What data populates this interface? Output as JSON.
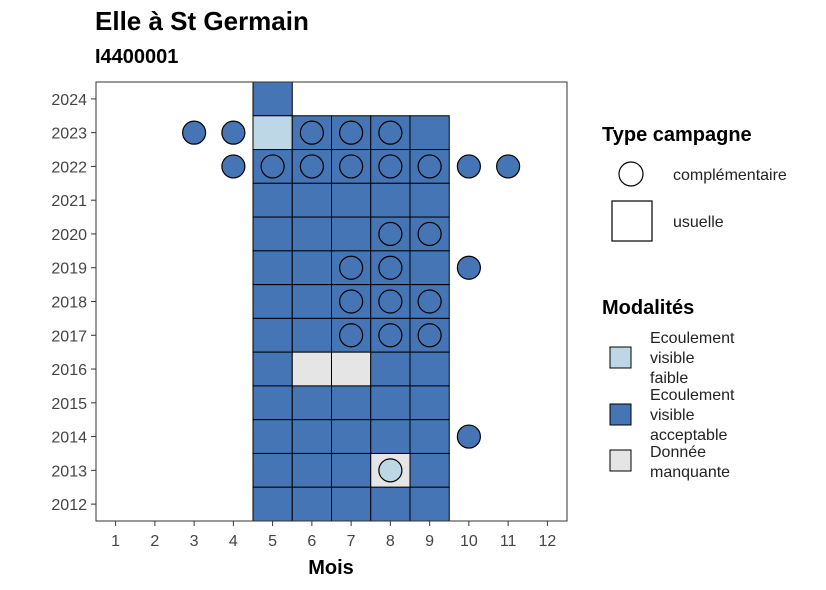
{
  "chart_data": {
    "type": "heatmap",
    "title": "Elle à St Germain",
    "subtitle": "I4400001",
    "xlabel": "Mois",
    "ylabel": "",
    "x_ticks": [
      1,
      2,
      3,
      4,
      5,
      6,
      7,
      8,
      9,
      10,
      11,
      12
    ],
    "y_ticks": [
      2012,
      2013,
      2014,
      2015,
      2016,
      2017,
      2018,
      2019,
      2020,
      2021,
      2022,
      2023,
      2024
    ],
    "xlim": [
      0.5,
      12.5
    ],
    "ylim": [
      2011.5,
      2024.5
    ],
    "grid": false,
    "legend_placement": "right",
    "colors": {
      "faible": "#BDD7E7",
      "acceptable": "#4575B4",
      "manquante": "#E5E5E5"
    },
    "usuelle": [
      {
        "year": 2024,
        "month": 5,
        "modalite": "acceptable"
      },
      {
        "year": 2023,
        "month": 5,
        "modalite": "faible"
      },
      {
        "year": 2023,
        "month": 6,
        "modalite": "acceptable"
      },
      {
        "year": 2023,
        "month": 7,
        "modalite": "acceptable"
      },
      {
        "year": 2023,
        "month": 8,
        "modalite": "acceptable"
      },
      {
        "year": 2023,
        "month": 9,
        "modalite": "acceptable"
      },
      {
        "year": 2022,
        "month": 5,
        "modalite": "acceptable"
      },
      {
        "year": 2022,
        "month": 6,
        "modalite": "acceptable"
      },
      {
        "year": 2022,
        "month": 7,
        "modalite": "acceptable"
      },
      {
        "year": 2022,
        "month": 8,
        "modalite": "acceptable"
      },
      {
        "year": 2022,
        "month": 9,
        "modalite": "acceptable"
      },
      {
        "year": 2021,
        "month": 5,
        "modalite": "acceptable"
      },
      {
        "year": 2021,
        "month": 6,
        "modalite": "acceptable"
      },
      {
        "year": 2021,
        "month": 7,
        "modalite": "acceptable"
      },
      {
        "year": 2021,
        "month": 8,
        "modalite": "acceptable"
      },
      {
        "year": 2021,
        "month": 9,
        "modalite": "acceptable"
      },
      {
        "year": 2020,
        "month": 5,
        "modalite": "acceptable"
      },
      {
        "year": 2020,
        "month": 6,
        "modalite": "acceptable"
      },
      {
        "year": 2020,
        "month": 7,
        "modalite": "acceptable"
      },
      {
        "year": 2020,
        "month": 8,
        "modalite": "acceptable"
      },
      {
        "year": 2020,
        "month": 9,
        "modalite": "acceptable"
      },
      {
        "year": 2019,
        "month": 5,
        "modalite": "acceptable"
      },
      {
        "year": 2019,
        "month": 6,
        "modalite": "acceptable"
      },
      {
        "year": 2019,
        "month": 7,
        "modalite": "acceptable"
      },
      {
        "year": 2019,
        "month": 8,
        "modalite": "acceptable"
      },
      {
        "year": 2019,
        "month": 9,
        "modalite": "acceptable"
      },
      {
        "year": 2018,
        "month": 5,
        "modalite": "acceptable"
      },
      {
        "year": 2018,
        "month": 6,
        "modalite": "acceptable"
      },
      {
        "year": 2018,
        "month": 7,
        "modalite": "acceptable"
      },
      {
        "year": 2018,
        "month": 8,
        "modalite": "acceptable"
      },
      {
        "year": 2018,
        "month": 9,
        "modalite": "acceptable"
      },
      {
        "year": 2017,
        "month": 5,
        "modalite": "acceptable"
      },
      {
        "year": 2017,
        "month": 6,
        "modalite": "acceptable"
      },
      {
        "year": 2017,
        "month": 7,
        "modalite": "acceptable"
      },
      {
        "year": 2017,
        "month": 8,
        "modalite": "acceptable"
      },
      {
        "year": 2017,
        "month": 9,
        "modalite": "acceptable"
      },
      {
        "year": 2016,
        "month": 5,
        "modalite": "acceptable"
      },
      {
        "year": 2016,
        "month": 6,
        "modalite": "manquante"
      },
      {
        "year": 2016,
        "month": 7,
        "modalite": "manquante"
      },
      {
        "year": 2016,
        "month": 8,
        "modalite": "acceptable"
      },
      {
        "year": 2016,
        "month": 9,
        "modalite": "acceptable"
      },
      {
        "year": 2015,
        "month": 5,
        "modalite": "acceptable"
      },
      {
        "year": 2015,
        "month": 6,
        "modalite": "acceptable"
      },
      {
        "year": 2015,
        "month": 7,
        "modalite": "acceptable"
      },
      {
        "year": 2015,
        "month": 8,
        "modalite": "acceptable"
      },
      {
        "year": 2015,
        "month": 9,
        "modalite": "acceptable"
      },
      {
        "year": 2014,
        "month": 5,
        "modalite": "acceptable"
      },
      {
        "year": 2014,
        "month": 6,
        "modalite": "acceptable"
      },
      {
        "year": 2014,
        "month": 7,
        "modalite": "acceptable"
      },
      {
        "year": 2014,
        "month": 8,
        "modalite": "acceptable"
      },
      {
        "year": 2014,
        "month": 9,
        "modalite": "acceptable"
      },
      {
        "year": 2013,
        "month": 5,
        "modalite": "acceptable"
      },
      {
        "year": 2013,
        "month": 6,
        "modalite": "acceptable"
      },
      {
        "year": 2013,
        "month": 7,
        "modalite": "acceptable"
      },
      {
        "year": 2013,
        "month": 8,
        "modalite": "manquante"
      },
      {
        "year": 2013,
        "month": 9,
        "modalite": "acceptable"
      },
      {
        "year": 2012,
        "month": 5,
        "modalite": "acceptable"
      },
      {
        "year": 2012,
        "month": 6,
        "modalite": "acceptable"
      },
      {
        "year": 2012,
        "month": 7,
        "modalite": "acceptable"
      },
      {
        "year": 2012,
        "month": 8,
        "modalite": "acceptable"
      },
      {
        "year": 2012,
        "month": 9,
        "modalite": "acceptable"
      }
    ],
    "complementaire": [
      {
        "year": 2023,
        "month": 3,
        "modalite": "acceptable"
      },
      {
        "year": 2023,
        "month": 4,
        "modalite": "acceptable"
      },
      {
        "year": 2023,
        "month": 6,
        "modalite": "acceptable"
      },
      {
        "year": 2023,
        "month": 7,
        "modalite": "acceptable"
      },
      {
        "year": 2023,
        "month": 8,
        "modalite": "acceptable"
      },
      {
        "year": 2022,
        "month": 4,
        "modalite": "acceptable"
      },
      {
        "year": 2022,
        "month": 5,
        "modalite": "acceptable"
      },
      {
        "year": 2022,
        "month": 6,
        "modalite": "acceptable"
      },
      {
        "year": 2022,
        "month": 7,
        "modalite": "acceptable"
      },
      {
        "year": 2022,
        "month": 8,
        "modalite": "acceptable"
      },
      {
        "year": 2022,
        "month": 9,
        "modalite": "acceptable"
      },
      {
        "year": 2022,
        "month": 10,
        "modalite": "acceptable"
      },
      {
        "year": 2022,
        "month": 11,
        "modalite": "acceptable"
      },
      {
        "year": 2020,
        "month": 8,
        "modalite": "acceptable"
      },
      {
        "year": 2020,
        "month": 9,
        "modalite": "acceptable"
      },
      {
        "year": 2019,
        "month": 7,
        "modalite": "acceptable"
      },
      {
        "year": 2019,
        "month": 8,
        "modalite": "acceptable"
      },
      {
        "year": 2019,
        "month": 10,
        "modalite": "acceptable"
      },
      {
        "year": 2018,
        "month": 7,
        "modalite": "acceptable"
      },
      {
        "year": 2018,
        "month": 8,
        "modalite": "acceptable"
      },
      {
        "year": 2018,
        "month": 9,
        "modalite": "acceptable"
      },
      {
        "year": 2017,
        "month": 7,
        "modalite": "acceptable"
      },
      {
        "year": 2017,
        "month": 8,
        "modalite": "acceptable"
      },
      {
        "year": 2017,
        "month": 9,
        "modalite": "acceptable"
      },
      {
        "year": 2014,
        "month": 10,
        "modalite": "acceptable"
      },
      {
        "year": 2013,
        "month": 8,
        "modalite": "faible"
      }
    ],
    "legend": {
      "type_title": "Type campagne",
      "type_items": [
        {
          "key": "complementaire",
          "label": "complémentaire"
        },
        {
          "key": "usuelle",
          "label": "usuelle"
        }
      ],
      "modalites_title": "Modalités",
      "modalites_items": [
        {
          "key": "faible",
          "label_lines": [
            "Ecoulement",
            "visible",
            "faible"
          ]
        },
        {
          "key": "acceptable",
          "label_lines": [
            "Ecoulement",
            "visible",
            "acceptable"
          ]
        },
        {
          "key": "manquante",
          "label_lines": [
            "Donnée",
            "manquante"
          ]
        }
      ]
    }
  }
}
